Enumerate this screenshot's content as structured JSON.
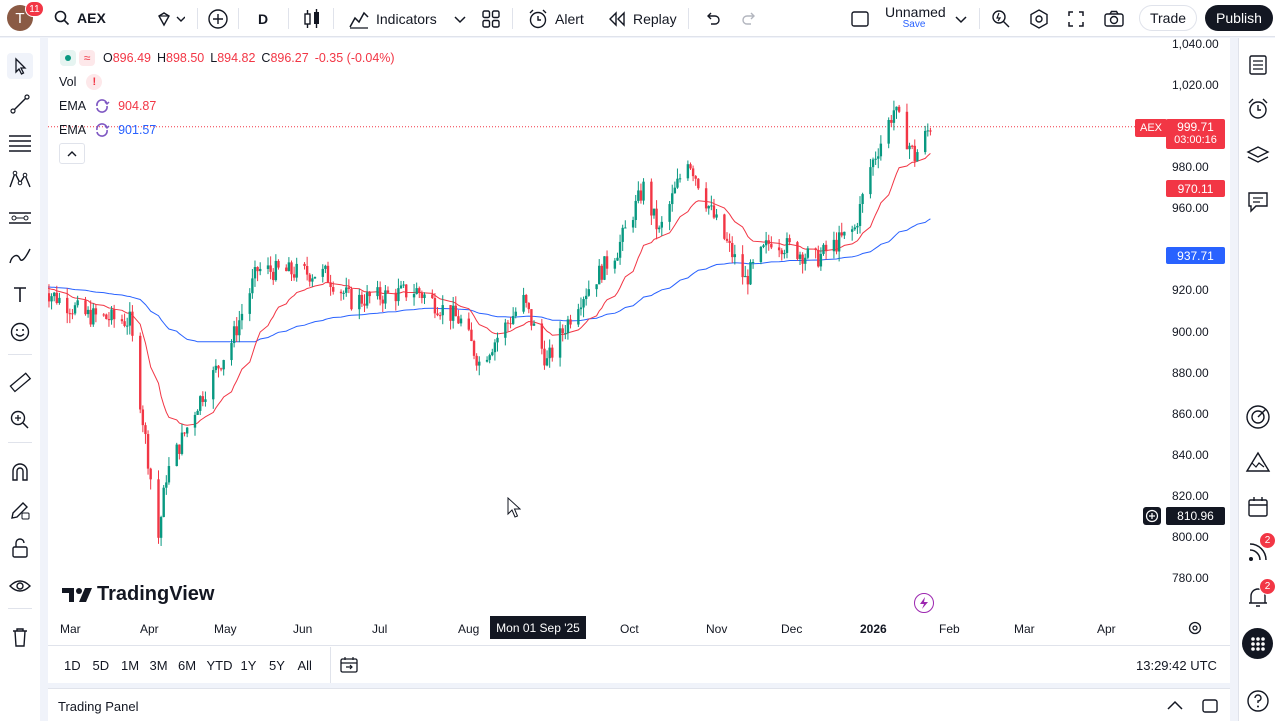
{
  "topbar": {
    "avatar_letter": "T",
    "avatar_badge": "11",
    "symbol": "AEX",
    "interval": "D",
    "indicators_label": "Indicators",
    "alert_label": "Alert",
    "replay_label": "Replay",
    "layout_name": "Unnamed",
    "layout_status": "Save",
    "trade_label": "Trade",
    "publish_label": "Publish"
  },
  "legend": {
    "ohlc": [
      {
        "k": "O",
        "v": "896.49"
      },
      {
        "k": "H",
        "v": "898.50"
      },
      {
        "k": "L",
        "v": "894.82"
      },
      {
        "k": "C",
        "v": "896.27"
      }
    ],
    "change": "-0.35 (-0.04%)",
    "vol_label": "Vol",
    "vol_warning": "!",
    "ema1_label": "EMA",
    "ema1_value": "904.87",
    "ema2_label": "EMA",
    "ema2_value": "901.57"
  },
  "price_axis": {
    "ticks": [
      "1,040.00",
      "1,020.00",
      "980.00",
      "960.00",
      "920.00",
      "900.00",
      "880.00",
      "860.00",
      "840.00",
      "820.00",
      "800.00",
      "780.00"
    ],
    "last_price": "999.71",
    "countdown": "03:00:16",
    "symbol_tag": "AEX",
    "ema1_tag": "970.11",
    "ema2_tag": "937.71",
    "crosshair_price": "810.96"
  },
  "time_axis": {
    "labels": [
      "Mar",
      "Apr",
      "May",
      "Jun",
      "Jul",
      "Aug",
      "Oct",
      "Nov",
      "Dec",
      "2026",
      "Feb",
      "Mar",
      "Apr"
    ],
    "crosshair_date": "Mon 01 Sep '25"
  },
  "watermark": "TradingView",
  "ranges": [
    "1D",
    "5D",
    "1M",
    "3M",
    "6M",
    "YTD",
    "1Y",
    "5Y",
    "All"
  ],
  "clock": "13:29:42 UTC",
  "trading_panel_label": "Trading Panel",
  "right_badges": {
    "ideas": "2",
    "alerts": "2"
  },
  "colors": {
    "up": "#089981",
    "down": "#f23645",
    "ema1": "#f23645",
    "ema2": "#2962ff"
  },
  "chart_data": {
    "type": "candlestick",
    "symbol": "AEX",
    "interval": "D",
    "ylim": [
      775,
      1045
    ],
    "start_date": "2025-02-20",
    "bars_per_day": 1,
    "series": [
      {
        "name": "EMA",
        "value": 970.11
      },
      {
        "name": "EMA",
        "value": 937.71
      }
    ],
    "close_path": [
      {
        "date": "2025-02-20",
        "close": 922
      },
      {
        "date": "2025-03-10",
        "close": 908
      },
      {
        "date": "2025-03-27",
        "close": 905
      },
      {
        "date": "2025-04-07",
        "close": 800
      },
      {
        "date": "2025-04-10",
        "close": 830
      },
      {
        "date": "2025-04-22",
        "close": 865
      },
      {
        "date": "2025-05-05",
        "close": 895
      },
      {
        "date": "2025-05-15",
        "close": 930
      },
      {
        "date": "2025-06-10",
        "close": 928
      },
      {
        "date": "2025-06-20",
        "close": 915
      },
      {
        "date": "2025-07-15",
        "close": 920
      },
      {
        "date": "2025-08-01",
        "close": 905
      },
      {
        "date": "2025-08-08",
        "close": 885
      },
      {
        "date": "2025-08-25",
        "close": 915
      },
      {
        "date": "2025-09-03",
        "close": 885
      },
      {
        "date": "2025-09-15",
        "close": 915
      },
      {
        "date": "2025-09-30",
        "close": 940
      },
      {
        "date": "2025-10-10",
        "close": 970
      },
      {
        "date": "2025-10-16",
        "close": 948
      },
      {
        "date": "2025-10-27",
        "close": 985
      },
      {
        "date": "2025-11-05",
        "close": 958
      },
      {
        "date": "2025-11-18",
        "close": 925
      },
      {
        "date": "2025-11-28",
        "close": 945
      },
      {
        "date": "2025-12-15",
        "close": 935
      },
      {
        "date": "2025-12-30",
        "close": 950
      },
      {
        "date": "2026-01-05",
        "close": 980
      },
      {
        "date": "2026-01-14",
        "close": 1008
      },
      {
        "date": "2026-01-22",
        "close": 985
      },
      {
        "date": "2026-01-28",
        "close": 1000
      }
    ]
  }
}
